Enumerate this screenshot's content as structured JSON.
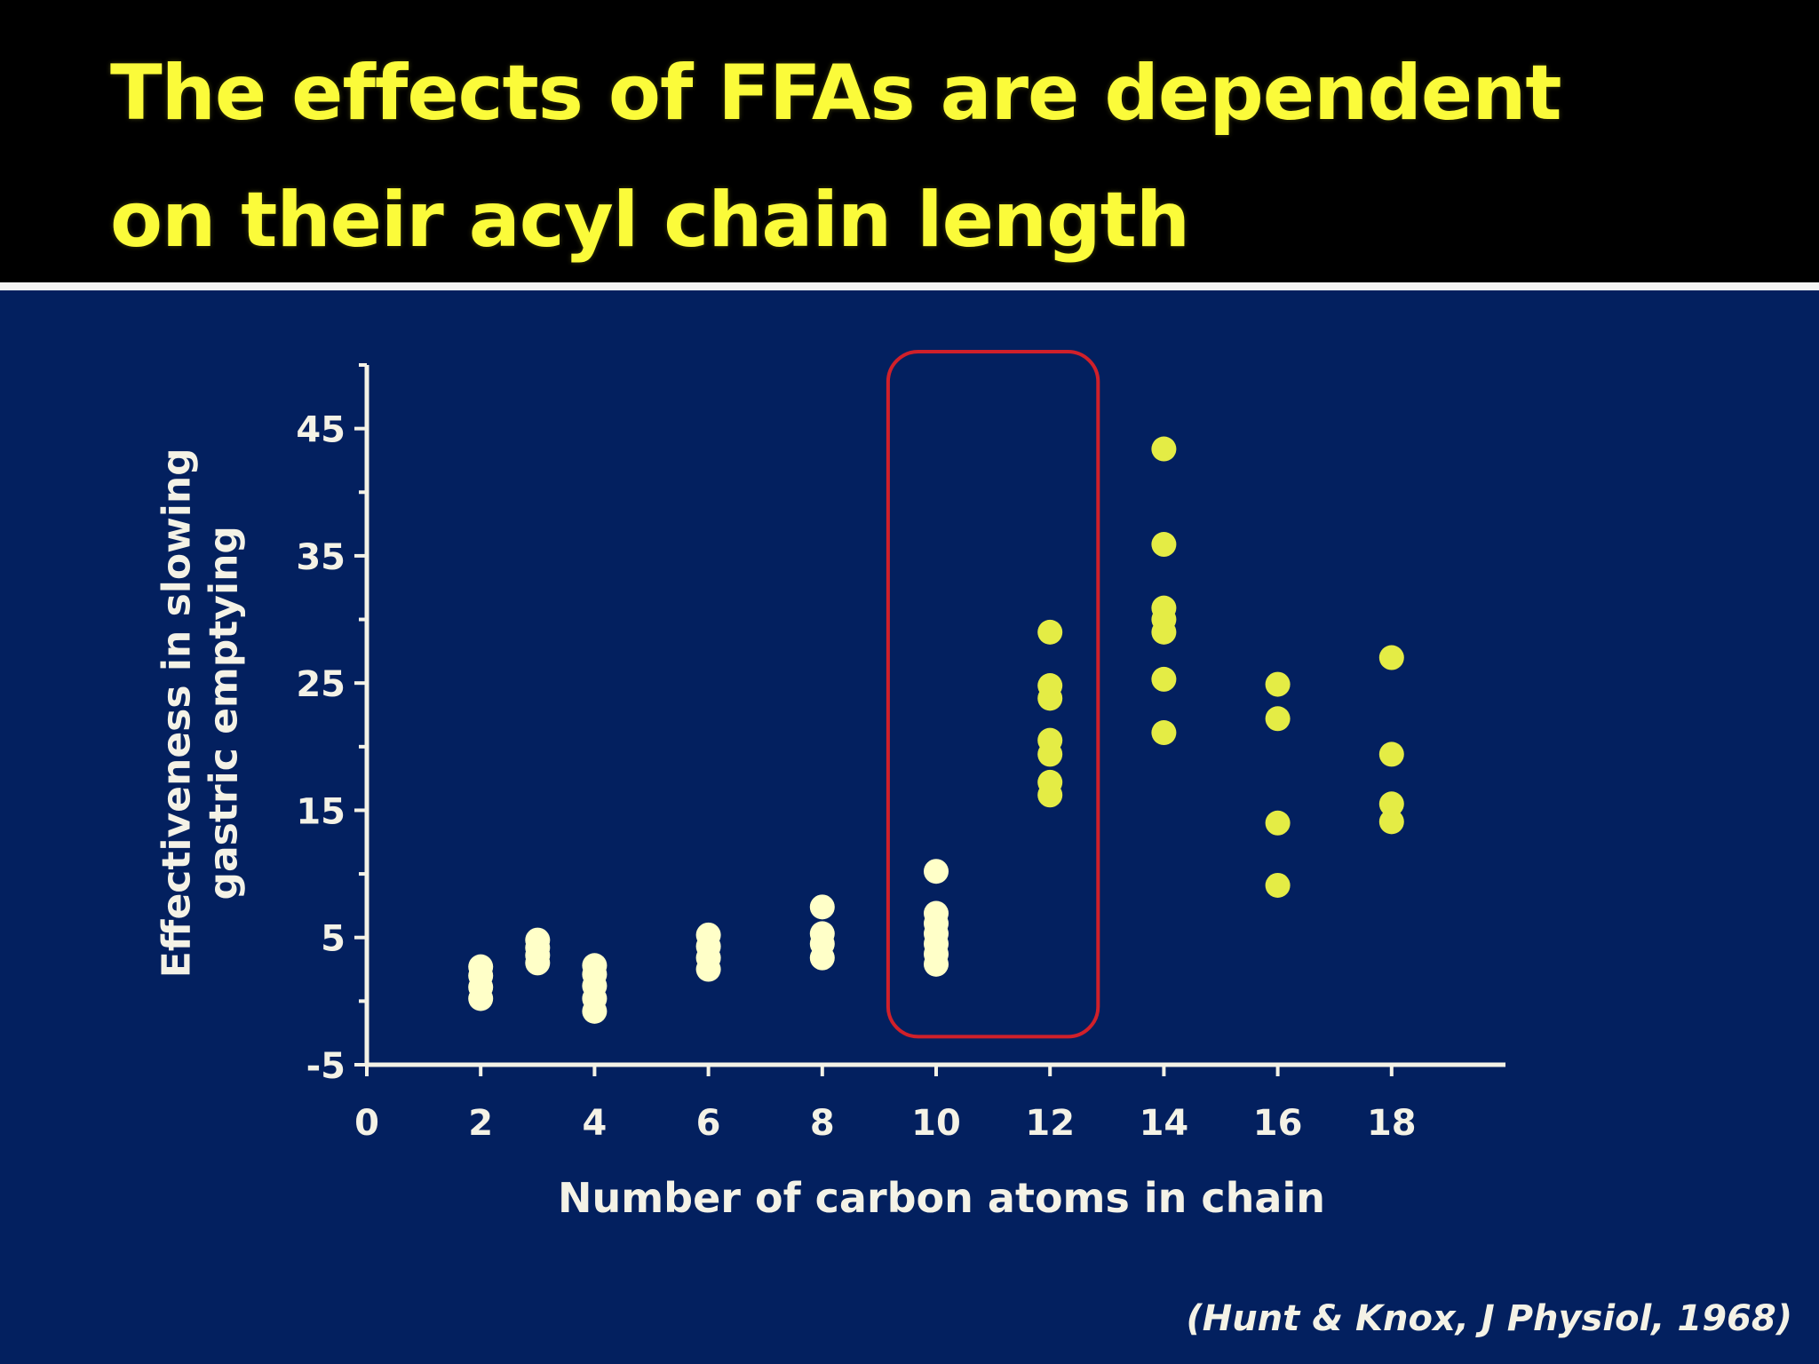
{
  "slide": {
    "title_line1": "The effects of FFAs are dependent",
    "title_line2": "on their acyl chain length",
    "citation": "(Hunt & Knox, J Physiol, 1968)"
  },
  "colors": {
    "title_bg": "#000000",
    "title_text": "#fbfb3a",
    "background": "#03205f",
    "axis": "#f4f2e6",
    "points_short_chain": "#ffffc8",
    "points_long_chain": "#e4ec45",
    "highlight_box": "#d0202a"
  },
  "chart_data": {
    "type": "scatter",
    "title": "",
    "xlabel": "Number of carbon atoms in chain",
    "ylabel_line1": "Effectiveness in slowing",
    "ylabel_line2": "gastric emptying",
    "xlim": [
      0,
      20
    ],
    "ylim": [
      -5,
      50
    ],
    "x_ticks": [
      0,
      2,
      4,
      6,
      8,
      10,
      12,
      14,
      16,
      18
    ],
    "y_ticks": [
      -5,
      5,
      15,
      25,
      35,
      45
    ],
    "grid": false,
    "legend": "none",
    "highlight": {
      "x_range": [
        9,
        13
      ],
      "label": ""
    },
    "series": [
      {
        "group": "short",
        "points": [
          [
            2,
            0.2
          ],
          [
            2,
            1.1
          ],
          [
            2,
            2.0
          ],
          [
            2,
            2.7
          ],
          [
            3,
            3.0
          ],
          [
            3,
            3.6
          ],
          [
            3,
            4.2
          ],
          [
            3,
            4.8
          ],
          [
            4,
            -0.8
          ],
          [
            4,
            0.2
          ],
          [
            4,
            1.2
          ],
          [
            4,
            2.1
          ],
          [
            4,
            2.8
          ],
          [
            6,
            2.5
          ],
          [
            6,
            3.4
          ],
          [
            6,
            4.3
          ],
          [
            6,
            5.2
          ],
          [
            8,
            3.4
          ],
          [
            8,
            4.5
          ],
          [
            8,
            5.3
          ],
          [
            8,
            7.4
          ],
          [
            10,
            2.9
          ],
          [
            10,
            3.7
          ],
          [
            10,
            4.5
          ],
          [
            10,
            5.3
          ],
          [
            10,
            6.1
          ],
          [
            10,
            6.9
          ],
          [
            10,
            10.2
          ]
        ]
      },
      {
        "group": "long",
        "points": [
          [
            12,
            16.2
          ],
          [
            12,
            17.2
          ],
          [
            12,
            19.4
          ],
          [
            12,
            20.5
          ],
          [
            12,
            23.8
          ],
          [
            12,
            24.8
          ],
          [
            12,
            29.0
          ],
          [
            14,
            21.1
          ],
          [
            14,
            25.3
          ],
          [
            14,
            29.0
          ],
          [
            14,
            30.0
          ],
          [
            14,
            30.9
          ],
          [
            14,
            35.9
          ],
          [
            14,
            43.4
          ],
          [
            16,
            9.1
          ],
          [
            16,
            14.0
          ],
          [
            16,
            22.2
          ],
          [
            16,
            24.9
          ],
          [
            18,
            14.1
          ],
          [
            18,
            15.5
          ],
          [
            18,
            19.4
          ],
          [
            18,
            27.0
          ]
        ]
      }
    ]
  }
}
